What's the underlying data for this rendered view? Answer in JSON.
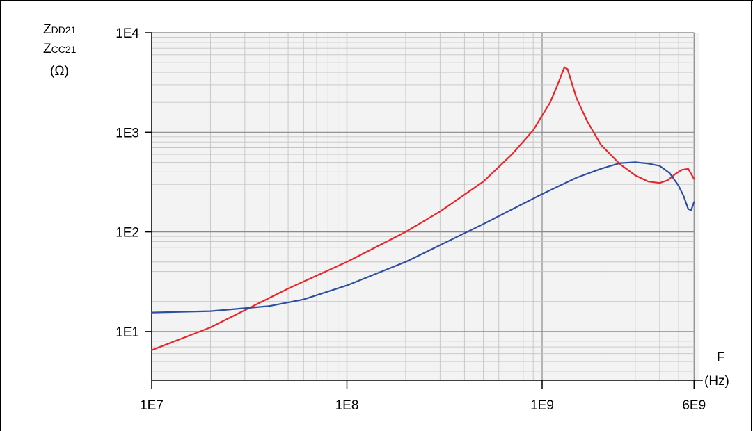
{
  "chart_data": {
    "type": "line",
    "title": "",
    "ylabel": {
      "line1_main": "Z",
      "line1_sub": "DD21",
      "line2_main": "Z",
      "line2_sub": "CC21",
      "line3": "(Ω)"
    },
    "xlabel": {
      "line1": "F",
      "line2": "(Hz)"
    },
    "x_scale": "log",
    "y_scale": "log",
    "xlim": [
      10000000,
      6000000000
    ],
    "ylim": [
      3.5,
      10000
    ],
    "x_ticks": [
      {
        "value": 10000000,
        "label": "1E7"
      },
      {
        "value": 100000000,
        "label": "1E8"
      },
      {
        "value": 1000000000,
        "label": "1E9"
      },
      {
        "value": 6000000000,
        "label": "6E9"
      }
    ],
    "y_ticks": [
      {
        "value": 10,
        "label": "1E1"
      },
      {
        "value": 100,
        "label": "1E2"
      },
      {
        "value": 1000,
        "label": "1E3"
      },
      {
        "value": 10000,
        "label": "1E4"
      }
    ],
    "grid": true,
    "legend": "none",
    "series": [
      {
        "color": "#e8262b",
        "x": [
          10000000,
          20000000,
          50000000,
          100000000,
          200000000,
          300000000,
          500000000,
          700000000,
          900000000,
          1100000000,
          1200000000,
          1300000000,
          1350000000,
          1400000000,
          1500000000,
          1700000000,
          2000000000,
          2500000000,
          3000000000,
          3500000000,
          4000000000,
          4400000000,
          4800000000,
          5200000000,
          5600000000,
          6000000000
        ],
        "y": [
          6.5,
          11,
          27,
          50,
          100,
          160,
          320,
          600,
          1050,
          2000,
          3000,
          4500,
          4300,
          3400,
          2200,
          1300,
          750,
          480,
          370,
          320,
          310,
          330,
          380,
          420,
          430,
          340
        ]
      },
      {
        "color": "#2e4fa0",
        "x": [
          10000000,
          20000000,
          40000000,
          60000000,
          100000000,
          200000000,
          500000000,
          1000000000,
          1500000000,
          2000000000,
          2500000000,
          3000000000,
          3500000000,
          4000000000,
          4500000000,
          5000000000,
          5300000000,
          5600000000,
          5800000000,
          6000000000
        ],
        "y": [
          15.5,
          16,
          18,
          21,
          29,
          50,
          120,
          240,
          350,
          430,
          490,
          500,
          485,
          460,
          390,
          290,
          230,
          170,
          165,
          200
        ]
      }
    ]
  }
}
